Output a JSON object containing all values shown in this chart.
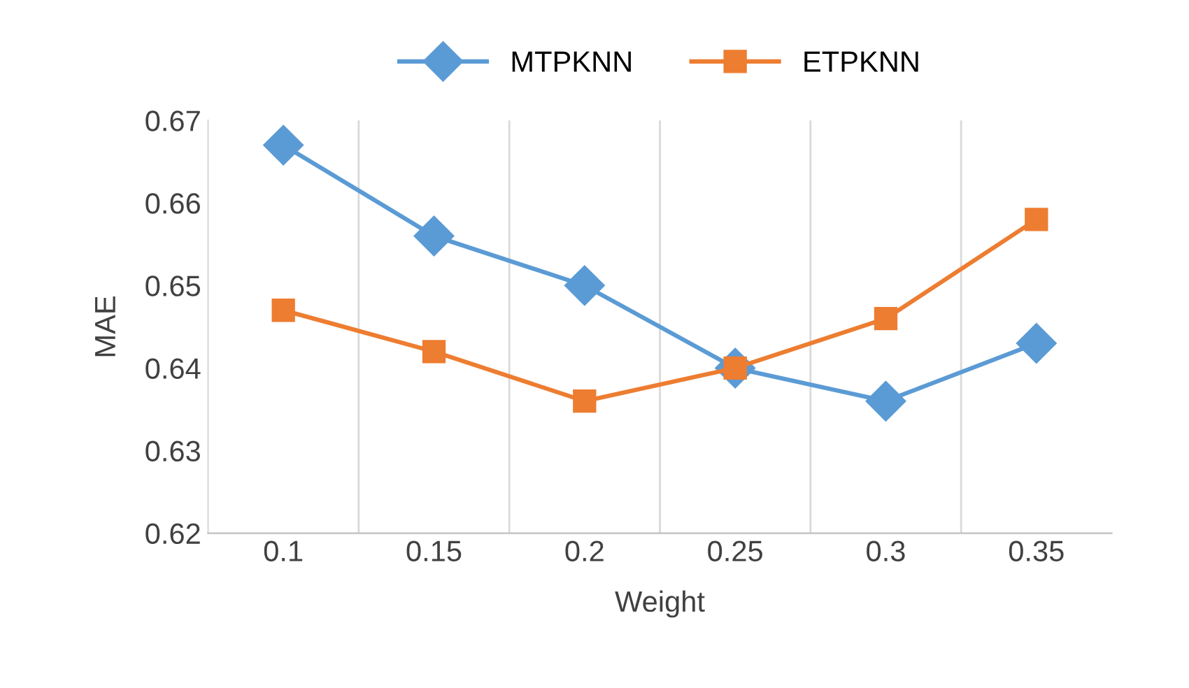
{
  "chart_data": {
    "type": "line",
    "xlabel": "Weight",
    "ylabel": "MAE",
    "categories": [
      "0.1",
      "0.15",
      "0.2",
      "0.25",
      "0.3",
      "0.35"
    ],
    "series": [
      {
        "name": "MTPKNN",
        "color": "#5b9bd5",
        "marker": "diamond",
        "values": [
          0.667,
          0.656,
          0.65,
          0.64,
          0.636,
          0.643
        ]
      },
      {
        "name": "ETPKNN",
        "color": "#ed7d31",
        "marker": "square",
        "values": [
          0.647,
          0.642,
          0.636,
          0.64,
          0.646,
          0.658
        ]
      }
    ],
    "ylim": [
      0.62,
      0.67
    ],
    "yticks": [
      0.62,
      0.63,
      0.64,
      0.65,
      0.66,
      0.67
    ],
    "grid": "x",
    "legend": "top",
    "line_style": "solid"
  }
}
